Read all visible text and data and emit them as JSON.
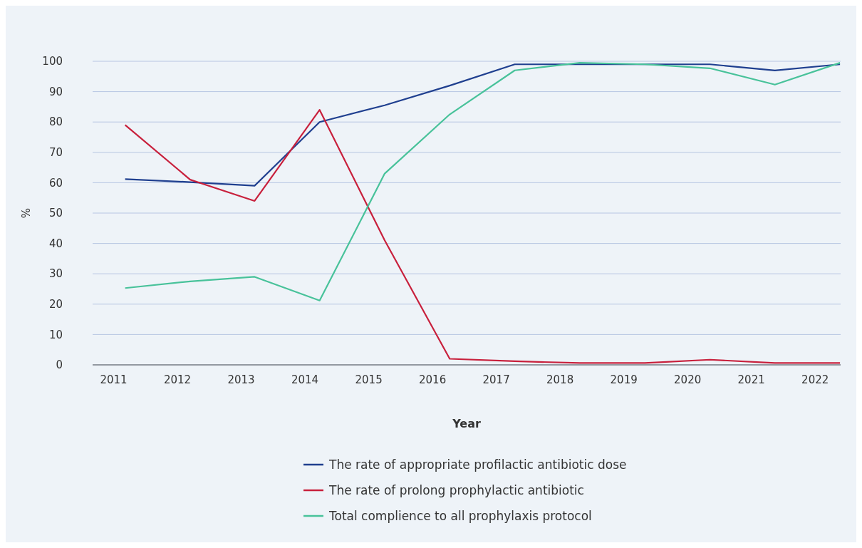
{
  "chart_data": {
    "type": "line",
    "xlabel": "Year",
    "ylabel": "%",
    "x": [
      2011.18,
      2012.2,
      2013.21,
      2014.23,
      2015.25,
      2016.27,
      2017.29,
      2018.31,
      2019.33,
      2020.35,
      2021.37,
      2022.39
    ],
    "xlim": [
      2010.67,
      2022.4
    ],
    "xticks": [
      2011,
      2012,
      2013,
      2014,
      2015,
      2016,
      2017,
      2018,
      2019,
      2020,
      2021,
      2022
    ],
    "ylim": [
      0,
      100
    ],
    "yticks": [
      0,
      10,
      20,
      30,
      40,
      50,
      60,
      70,
      80,
      90,
      100
    ],
    "grid": "y",
    "legend": "bottom",
    "marker": "none",
    "line_style": "solid",
    "series": [
      {
        "name": "The rate of appropriate profilactic antibiotic dose",
        "color": "#1f3f8f",
        "values": [
          61.2,
          60.2,
          59,
          80,
          85.5,
          92,
          99,
          99,
          99,
          99,
          97,
          99
        ]
      },
      {
        "name": "The rate of prolong prophylactic antibiotic",
        "color": "#c8203c",
        "values": [
          79,
          61,
          54,
          84,
          41,
          2,
          1.2,
          0.6,
          0.6,
          1.7,
          0.6,
          0.6
        ]
      },
      {
        "name": "Total complience to all prophylaxis protocol",
        "color": "#48c29a",
        "values": [
          25.3,
          27.5,
          29,
          21.2,
          63,
          82.5,
          97,
          99.5,
          99,
          97.7,
          92.3,
          99.5
        ]
      }
    ]
  }
}
